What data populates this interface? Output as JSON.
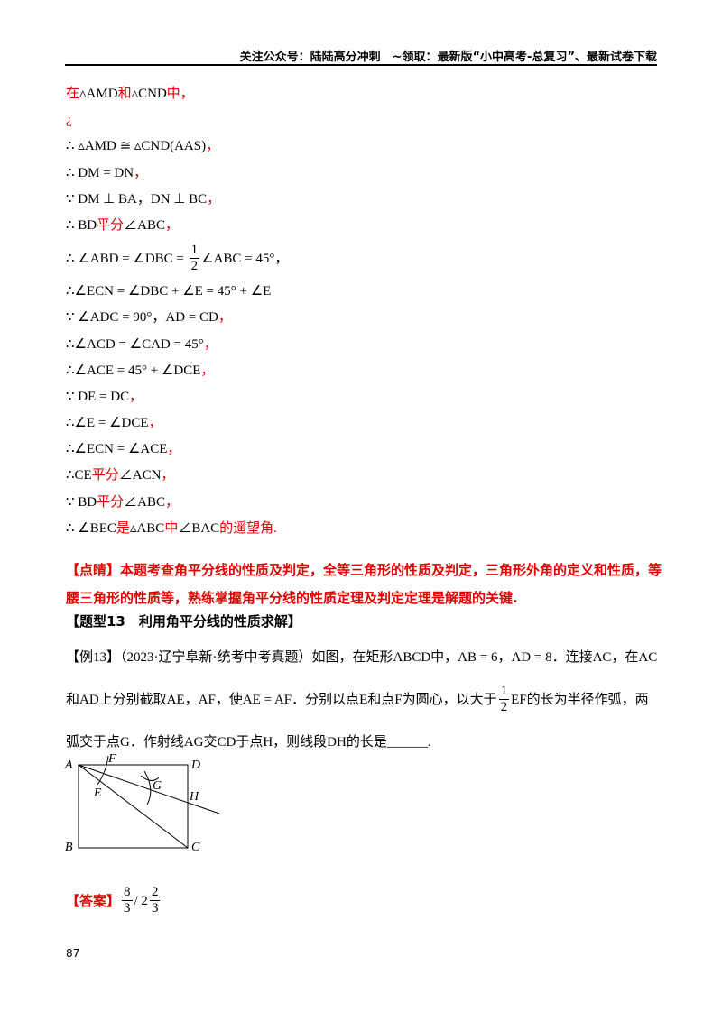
{
  "header": "关注公众号：陆陆高分冲刺　~领取：最新版“小中高考-总复习”、最新试卷下载",
  "proof": [
    [
      {
        "text": "在",
        "color": "#e00000"
      },
      {
        "text": "▵AMD",
        "color": "#000000"
      },
      {
        "text": "和",
        "color": "#e00000"
      },
      {
        "text": "▵CND",
        "color": "#000000"
      },
      {
        "text": "中，",
        "color": "#e00000"
      }
    ],
    [
      {
        "text": "¿",
        "color": "#e00000"
      }
    ],
    [
      {
        "text": "∴ ▵AMD ≅ ▵CND(AAS)",
        "color": "#000000"
      },
      {
        "text": "，",
        "color": "#e00000"
      }
    ],
    [
      {
        "text": "∴ DM = DN",
        "color": "#000000"
      },
      {
        "text": "，",
        "color": "#e00000"
      }
    ],
    [
      {
        "text": "∵ DM ⊥ BA，DN ⊥ BC",
        "color": "#000000"
      },
      {
        "text": "，",
        "color": "#e00000"
      }
    ],
    [
      {
        "text": "∴ BD",
        "color": "#000000"
      },
      {
        "text": "平分",
        "color": "#e00000"
      },
      {
        "text": "∠ABC",
        "color": "#000000"
      },
      {
        "text": "，",
        "color": "#e00000"
      }
    ],
    [
      {
        "text": "∴ ∠ABD = ∠DBC = ",
        "color": "#000000"
      },
      {
        "num": "1",
        "den": "2"
      },
      {
        "text": "∠ABC = 45°，",
        "color": "#000000"
      }
    ],
    [
      {
        "text": "∴∠ECN = ∠DBC + ∠E = 45° + ∠E",
        "color": "#000000"
      }
    ],
    [
      {
        "text": "∵ ∠ADC = 90°，AD = CD",
        "color": "#000000"
      },
      {
        "text": "，",
        "color": "#e00000"
      }
    ],
    [
      {
        "text": "∴∠ACD = ∠CAD = 45°",
        "color": "#000000"
      },
      {
        "text": "，",
        "color": "#e00000"
      }
    ],
    [
      {
        "text": "∴∠ACE = 45° + ∠DCE",
        "color": "#000000"
      },
      {
        "text": "，",
        "color": "#e00000"
      }
    ],
    [
      {
        "text": "∵ DE = DC",
        "color": "#000000"
      },
      {
        "text": "，",
        "color": "#e00000"
      }
    ],
    [
      {
        "text": "∴∠E = ∠DCE",
        "color": "#000000"
      },
      {
        "text": "，",
        "color": "#e00000"
      }
    ],
    [
      {
        "text": "∴∠ECN = ∠ACE",
        "color": "#000000"
      },
      {
        "text": "，",
        "color": "#e00000"
      }
    ],
    [
      {
        "text": "∴CE",
        "color": "#000000"
      },
      {
        "text": "平分",
        "color": "#e00000"
      },
      {
        "text": "∠ACN",
        "color": "#000000"
      },
      {
        "text": "，",
        "color": "#e00000"
      }
    ],
    [
      {
        "text": "∵ BD",
        "color": "#000000"
      },
      {
        "text": "平分",
        "color": "#e00000"
      },
      {
        "text": "∠ABC",
        "color": "#000000"
      },
      {
        "text": "，",
        "color": "#e00000"
      }
    ],
    [
      {
        "text": "∴ ∠BEC",
        "color": "#000000"
      },
      {
        "text": "是",
        "color": "#e00000"
      },
      {
        "text": "▵ABC",
        "color": "#000000"
      },
      {
        "text": "中",
        "color": "#e00000"
      },
      {
        "text": "∠BAC",
        "color": "#000000"
      },
      {
        "text": "的遥望角.",
        "color": "#e00000"
      }
    ]
  ],
  "comment": "【点睛】本题考查角平分线的性质及判定，全等三角形的性质及判定，三角形外角的定义和性质，等腰三角形的性质等，熟练掌握角平分线的性质定理及判定定理是解题的关键.",
  "section_title": "【题型13　利用角平分线的性质求解】",
  "example": [
    {
      "text": "【例13】（2023·辽宁阜新·统考中考真题）如图，在矩形ABCD中，AB = 6，AD = 8．连接AC，在AC和AD上分别截取AE，AF，使AE = AF．分别以点E和点F为圆心，以大于"
    },
    {
      "num": "1",
      "den": "2"
    },
    {
      "text": "EF的长为半径作弧，两弧交于点G．作射线AG交CD于点H，则线段DH的长是______."
    }
  ],
  "figure": [
    "A",
    "F",
    "D",
    "E",
    "G",
    "H",
    "B",
    "C"
  ],
  "answer": {
    "label": "【答案】",
    "parts": [
      {
        "num": "8",
        "den": "3"
      },
      {
        "text": "/ 2"
      },
      {
        "num": "2",
        "den": "3"
      }
    ]
  },
  "page_number": "87"
}
